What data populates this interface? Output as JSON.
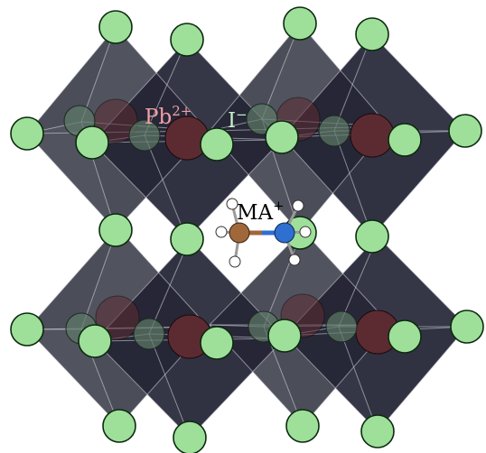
{
  "labels": {
    "lead_ion": {
      "base": "Pb",
      "charge": "2+"
    },
    "iodide_ion": {
      "base": "I",
      "charge": "−"
    },
    "cation": {
      "base": "MA",
      "charge": "+"
    }
  },
  "colors": {
    "octahedron_back": "#4a4c57",
    "octahedron_front": "#2c2d3d",
    "octahedron_dark": "#1d1e2d",
    "iodide_fill": "#9ee09a",
    "iodide_stroke": "#0c2a10",
    "lead_fill": "#5c2b31",
    "lead_label": "#f0a0a6",
    "iodide_label": "#c8f0c8",
    "cation_label": "#000000",
    "carbon": "#a0683a",
    "nitrogen": "#2f6fd0",
    "hydrogen": "#ffffff"
  }
}
